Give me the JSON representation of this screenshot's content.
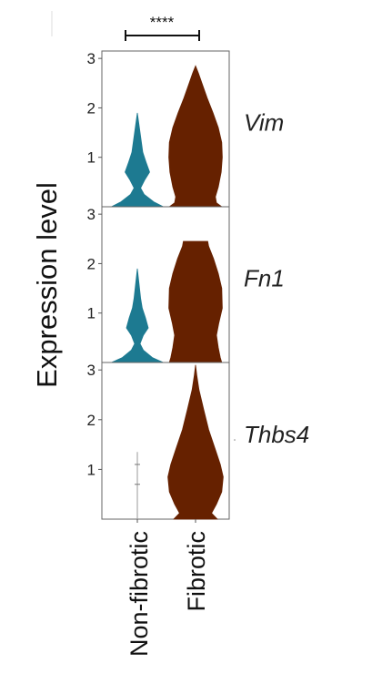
{
  "chart_data": {
    "type": "violin",
    "ylabel": "Expression level",
    "categories": [
      "Non-fibrotic",
      "Fibrotic"
    ],
    "category_colors": {
      "Non-fibrotic": "#1d7a91",
      "Fibrotic": "#662100"
    },
    "significance": {
      "label": "****",
      "between": [
        "Non-fibrotic",
        "Fibrotic"
      ]
    },
    "yticks": [
      1,
      2,
      3
    ],
    "ylim": [
      0,
      3.15
    ],
    "panels": [
      {
        "gene": "Vim",
        "violins": [
          {
            "category": "Non-fibrotic",
            "max": 1.9,
            "profile": [
              [
                0,
                0.95
              ],
              [
                0.1,
                0.6
              ],
              [
                0.25,
                0.25
              ],
              [
                0.38,
                0.12
              ],
              [
                0.55,
                0.28
              ],
              [
                0.7,
                0.45
              ],
              [
                0.9,
                0.32
              ],
              [
                1.1,
                0.2
              ],
              [
                1.3,
                0.15
              ],
              [
                1.5,
                0.1
              ],
              [
                1.7,
                0.05
              ],
              [
                1.9,
                0
              ]
            ]
          },
          {
            "category": "Fibrotic",
            "max": 2.85,
            "profile": [
              [
                0,
                0.9
              ],
              [
                0.08,
                0.72
              ],
              [
                0.2,
                0.68
              ],
              [
                0.4,
                0.78
              ],
              [
                0.7,
                0.88
              ],
              [
                1.0,
                0.92
              ],
              [
                1.3,
                0.9
              ],
              [
                1.6,
                0.78
              ],
              [
                1.9,
                0.6
              ],
              [
                2.2,
                0.4
              ],
              [
                2.5,
                0.22
              ],
              [
                2.7,
                0.1
              ],
              [
                2.85,
                0
              ]
            ]
          }
        ]
      },
      {
        "gene": "Fn1",
        "violins": [
          {
            "category": "Non-fibrotic",
            "max": 1.9,
            "profile": [
              [
                0,
                0.95
              ],
              [
                0.1,
                0.55
              ],
              [
                0.25,
                0.22
              ],
              [
                0.38,
                0.1
              ],
              [
                0.55,
                0.22
              ],
              [
                0.7,
                0.4
              ],
              [
                0.9,
                0.3
              ],
              [
                1.1,
                0.18
              ],
              [
                1.3,
                0.12
              ],
              [
                1.6,
                0.06
              ],
              [
                1.9,
                0
              ]
            ]
          },
          {
            "category": "Fibrotic",
            "max": 2.45,
            "profile": [
              [
                0,
                0.9
              ],
              [
                0.1,
                0.85
              ],
              [
                0.3,
                0.78
              ],
              [
                0.55,
                0.72
              ],
              [
                0.8,
                0.8
              ],
              [
                1.1,
                0.92
              ],
              [
                1.5,
                0.9
              ],
              [
                1.8,
                0.78
              ],
              [
                2.1,
                0.62
              ],
              [
                2.35,
                0.45
              ],
              [
                2.45,
                0.42
              ]
            ]
          }
        ]
      },
      {
        "gene": "Thbs4",
        "violins": [
          {
            "category": "Non-fibrotic",
            "max": 1.35,
            "profile": []
          },
          {
            "category": "Fibrotic",
            "max": 3.1,
            "profile": [
              [
                0,
                0.75
              ],
              [
                0.12,
                0.55
              ],
              [
                0.3,
                0.72
              ],
              [
                0.55,
                0.9
              ],
              [
                0.85,
                0.95
              ],
              [
                1.1,
                0.85
              ],
              [
                1.4,
                0.68
              ],
              [
                1.8,
                0.45
              ],
              [
                2.2,
                0.28
              ],
              [
                2.6,
                0.12
              ],
              [
                2.9,
                0.04
              ],
              [
                3.1,
                0
              ]
            ]
          }
        ]
      }
    ]
  }
}
